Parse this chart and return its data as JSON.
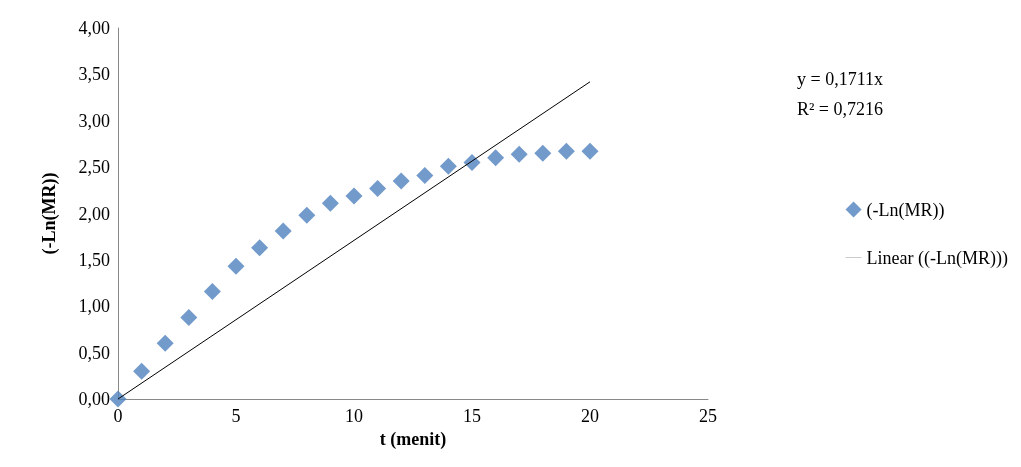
{
  "chart_data": {
    "type": "scatter",
    "xlabel": "t (menit)",
    "ylabel": "(-Ln(MR))",
    "xlim": [
      0,
      25
    ],
    "xticks": [
      0,
      5,
      10,
      15,
      20,
      25
    ],
    "ylim": [
      0,
      4
    ],
    "yticks": [
      {
        "value": 0,
        "label": "0,00"
      },
      {
        "value": 0.5,
        "label": "0,50"
      },
      {
        "value": 1,
        "label": "1,00"
      },
      {
        "value": 1.5,
        "label": "1,50"
      },
      {
        "value": 2,
        "label": "2,00"
      },
      {
        "value": 2.5,
        "label": "2,50"
      },
      {
        "value": 3,
        "label": "3,00"
      },
      {
        "value": 3.5,
        "label": "3,50"
      },
      {
        "value": 4,
        "label": "4,00"
      }
    ],
    "grid": false,
    "legend": "right",
    "marker": "diamond",
    "annotations": [
      "y = 0,1711x",
      "R² = 0,7216"
    ],
    "series": [
      {
        "name": "(-Ln(MR))",
        "color": "#4f81bd",
        "x": [
          0,
          1,
          2,
          3,
          4,
          5,
          6,
          7,
          8,
          9,
          10,
          11,
          12,
          13,
          14,
          15,
          16,
          17,
          18,
          19,
          20
        ],
        "values": [
          0,
          0.3,
          0.6,
          0.88,
          1.16,
          1.43,
          1.63,
          1.81,
          1.98,
          2.11,
          2.19,
          2.27,
          2.35,
          2.41,
          2.51,
          2.55,
          2.6,
          2.64,
          2.65,
          2.67,
          2.67
        ]
      },
      {
        "name": "Linear ((-Ln(MR)))",
        "type": "line",
        "color": "#000000",
        "marker": "none",
        "line_style": "solid",
        "x": [
          0,
          20
        ],
        "values": [
          0,
          3.42
        ]
      }
    ]
  }
}
